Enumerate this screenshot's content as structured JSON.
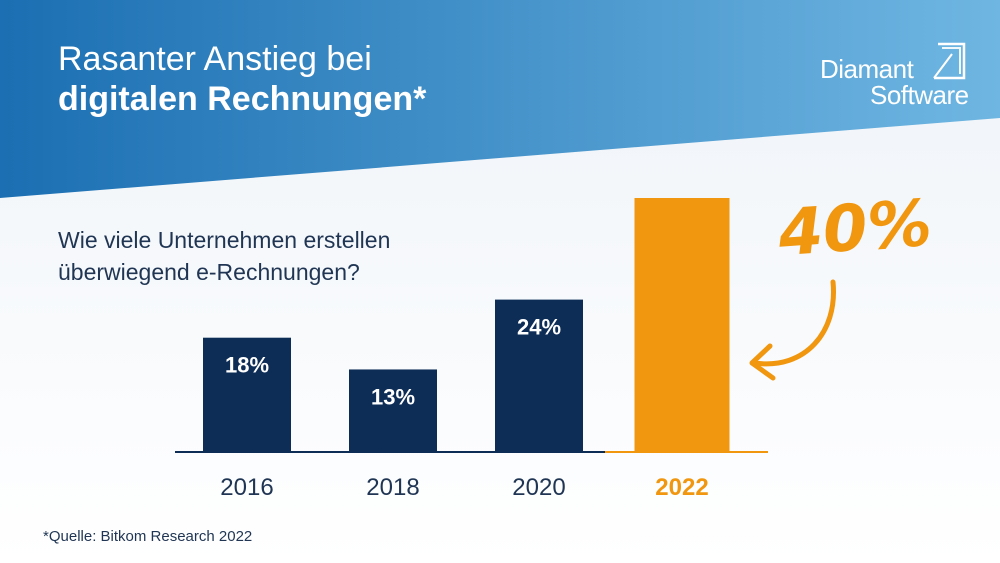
{
  "title": {
    "line1": "Rasanter Anstieg bei",
    "line2": "digitalen Rechnungen*"
  },
  "logo": {
    "line1": "Diamant",
    "line2": "Software"
  },
  "question": {
    "line1": "Wie viele Unternehmen erstellen",
    "line2": "überwiegend e-Rechnungen?"
  },
  "source": "*Quelle: Bitkom Research 2022",
  "colors": {
    "header_blue": "#1a74b8",
    "bar_navy": "#0d2d57",
    "highlight_orange": "#f0960f",
    "text_dark": "#1f3553"
  },
  "chart_data": {
    "type": "bar",
    "categories": [
      "2016",
      "2018",
      "2020",
      "2022"
    ],
    "values": [
      18,
      13,
      24,
      40
    ],
    "data_labels": [
      "18%",
      "13%",
      "24%",
      "40%"
    ],
    "highlight_index": 3,
    "unit": "%",
    "ylim": [
      0,
      40
    ],
    "grid": false,
    "legend": "none"
  }
}
